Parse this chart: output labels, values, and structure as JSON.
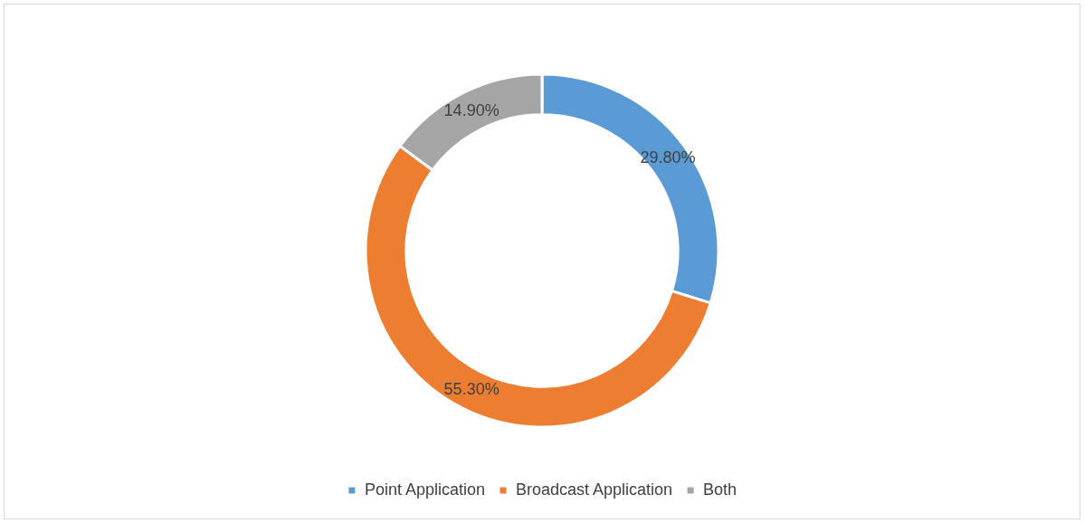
{
  "chart_data": {
    "type": "donut",
    "categories": [
      "Point Application",
      "Broadcast Application",
      "Both"
    ],
    "values": [
      29.8,
      55.3,
      14.9
    ],
    "value_labels": [
      "29.80%",
      "55.30%",
      "14.90%"
    ],
    "colors": [
      "#5b9bd5",
      "#ed7d31",
      "#a5a5a5"
    ],
    "legend": "bottom"
  }
}
